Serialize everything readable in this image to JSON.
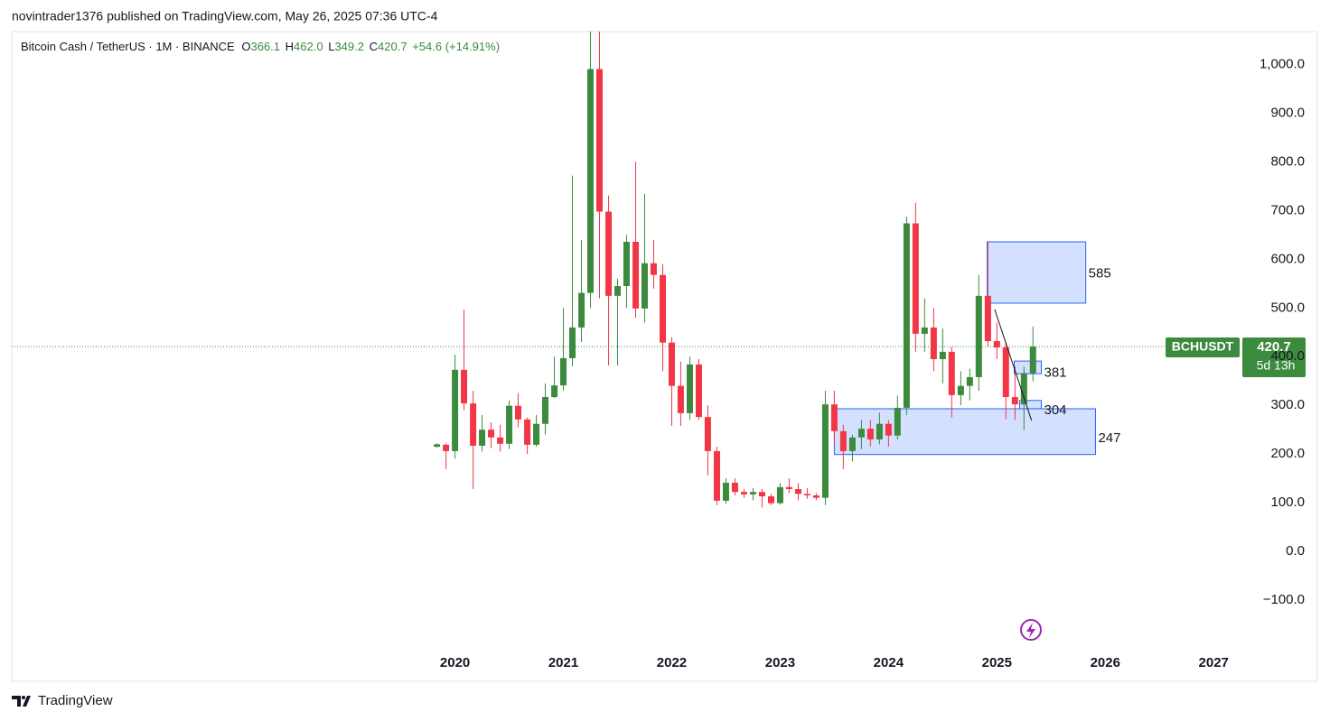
{
  "header": {
    "published": "novintrader1376 published on TradingView.com, May 26, 2025 07:36 UTC-4"
  },
  "footer": {
    "brand": "TradingView"
  },
  "chart_data": {
    "type": "candlestick",
    "symbol_line": "Bitcoin Cash / TetherUS · 1M · BINANCE",
    "legend": [
      {
        "key": "O",
        "value": "366.1"
      },
      {
        "key": "H",
        "value": "462.0"
      },
      {
        "key": "L",
        "value": "349.2"
      },
      {
        "key": "C",
        "value": "420.7"
      }
    ],
    "change": "+54.6 (+14.91%)",
    "price_tag": {
      "symbol": "BCHUSDT",
      "price": "420.7",
      "countdown": "5d 13h"
    },
    "up_color": "#3b8a3e",
    "down_color": "#f23645",
    "x": [
      2019.833,
      2019.917,
      2020.0,
      2020.083,
      2020.167,
      2020.25,
      2020.333,
      2020.417,
      2020.5,
      2020.583,
      2020.667,
      2020.75,
      2020.833,
      2020.917,
      2021.0,
      2021.083,
      2021.167,
      2021.25,
      2021.333,
      2021.417,
      2021.5,
      2021.583,
      2021.667,
      2021.75,
      2021.833,
      2021.917,
      2022.0,
      2022.083,
      2022.167,
      2022.25,
      2022.333,
      2022.417,
      2022.5,
      2022.583,
      2022.667,
      2022.75,
      2022.833,
      2022.917,
      2023.0,
      2023.083,
      2023.167,
      2023.25,
      2023.333,
      2023.417,
      2023.5,
      2023.583,
      2023.667,
      2023.75,
      2023.833,
      2023.917,
      2024.0,
      2024.083,
      2024.167,
      2024.25,
      2024.333,
      2024.417,
      2024.5,
      2024.583,
      2024.667,
      2024.75,
      2024.833,
      2024.917,
      2025.0,
      2025.083,
      2025.167,
      2025.25,
      2025.333
    ],
    "open": [
      215,
      219,
      206,
      373,
      304,
      217,
      250,
      234,
      221,
      299,
      271,
      219,
      262,
      317,
      341,
      397,
      460,
      531,
      991,
      698,
      525,
      545,
      636,
      499,
      592,
      568,
      429,
      340,
      284,
      384,
      276,
      206,
      104,
      141,
      122,
      117,
      122,
      113,
      99,
      132,
      128,
      118,
      115,
      110,
      302,
      247,
      206,
      234,
      252,
      230,
      262,
      238,
      295,
      674,
      447,
      460,
      395,
      410,
      321,
      340,
      358,
      525,
      432,
      419,
      317,
      302,
      366.1
    ],
    "high": [
      222,
      222,
      404,
      497,
      330,
      280,
      265,
      260,
      310,
      325,
      275,
      280,
      345,
      400,
      500,
      772,
      640,
      1100,
      1100,
      731,
      560,
      650,
      800,
      735,
      640,
      590,
      440,
      390,
      400,
      395,
      300,
      215,
      150,
      150,
      128,
      130,
      128,
      118,
      140,
      150,
      140,
      130,
      120,
      330,
      330,
      260,
      240,
      270,
      270,
      285,
      270,
      320,
      688,
      716,
      520,
      500,
      458,
      420,
      370,
      375,
      568,
      636,
      470,
      430,
      380,
      380,
      462
    ],
    "low": [
      213,
      169,
      191,
      290,
      128,
      205,
      212,
      205,
      210,
      255,
      200,
      215,
      240,
      315,
      330,
      380,
      430,
      500,
      520,
      382,
      382,
      500,
      480,
      470,
      540,
      370,
      258,
      258,
      270,
      270,
      156,
      95,
      98,
      115,
      110,
      105,
      90,
      95,
      96,
      120,
      105,
      108,
      105,
      95,
      220,
      169,
      185,
      210,
      215,
      220,
      215,
      230,
      280,
      410,
      410,
      370,
      345,
      275,
      300,
      310,
      330,
      420,
      395,
      271,
      270,
      249,
      349.2
    ],
    "close": [
      220,
      206,
      373,
      304,
      217,
      250,
      234,
      221,
      299,
      271,
      219,
      262,
      317,
      341,
      397,
      460,
      531,
      991,
      698,
      525,
      545,
      636,
      499,
      592,
      568,
      429,
      340,
      284,
      384,
      276,
      206,
      104,
      141,
      122,
      117,
      122,
      113,
      99,
      132,
      128,
      118,
      115,
      110,
      302,
      247,
      206,
      234,
      252,
      230,
      262,
      238,
      295,
      674,
      447,
      460,
      395,
      410,
      321,
      340,
      358,
      525,
      432,
      419,
      317,
      302,
      366.1,
      420.7
    ],
    "xlim": [
      2015.91,
      2027.24
    ],
    "xticks": [
      2020,
      2021,
      2022,
      2023,
      2024,
      2025,
      2026,
      2027
    ],
    "ylim": [
      -267,
      1068
    ],
    "yticks": [
      {
        "value": 1000,
        "label": "1,000.0"
      },
      {
        "value": 900,
        "label": "900.0"
      },
      {
        "value": 800,
        "label": "800.0"
      },
      {
        "value": 700,
        "label": "700.0"
      },
      {
        "value": 600,
        "label": "600.0"
      },
      {
        "value": 500,
        "label": "500.0"
      },
      {
        "value": 400,
        "label": "400.0"
      },
      {
        "value": 300,
        "label": "300.0"
      },
      {
        "value": 200,
        "label": "200.0"
      },
      {
        "value": 100,
        "label": "100.0"
      },
      {
        "value": 0,
        "label": "0.0"
      },
      {
        "value": -100,
        "label": "−100.0"
      }
    ],
    "zones": [
      {
        "level": 585,
        "low": 510,
        "high": 636,
        "start": 2024.91,
        "end": 2025.82
      },
      {
        "level": 381,
        "low": 365,
        "high": 391,
        "start": 2025.16,
        "end": 2025.41
      },
      {
        "level": 304,
        "low": 293,
        "high": 310,
        "start": 2025.21,
        "end": 2025.41
      },
      {
        "level": 247,
        "low": 199,
        "high": 293,
        "start": 2023.5,
        "end": 2025.91
      }
    ],
    "trendline": {
      "x": [
        2024.98,
        2025.32
      ],
      "y": [
        497,
        269
      ]
    }
  }
}
